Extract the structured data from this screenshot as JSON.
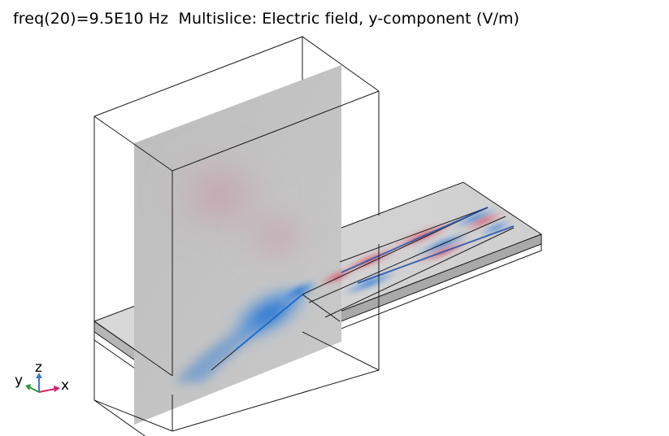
{
  "title": {
    "parameter": "freq(20)=9.5E10 Hz",
    "plot": "Multislice: Electric field, y-component (V/m)"
  },
  "axes_triad": {
    "x_label": "x",
    "y_label": "y",
    "z_label": "z",
    "x_color": "#d4226a",
    "y_color": "#2e9a3a",
    "z_color": "#3a7bc8"
  },
  "colormap": {
    "positive_color": "#d43a55",
    "negative_color": "#1f6fd1",
    "neutral_color": "#c6c6c6"
  }
}
